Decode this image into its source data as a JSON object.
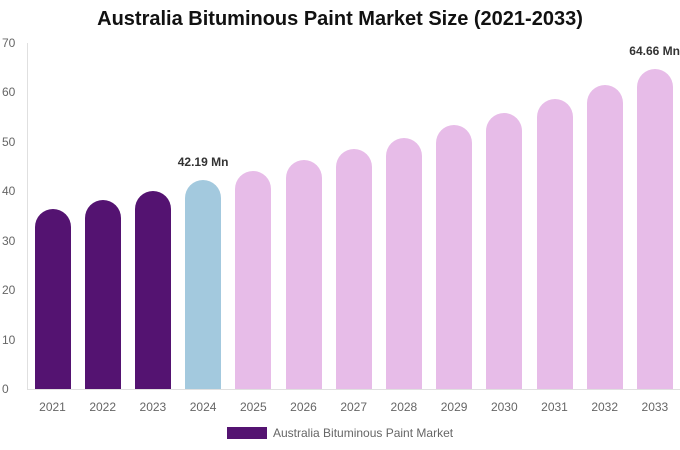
{
  "chart_data": {
    "type": "bar",
    "title": "Australia Bituminous Paint Market Size (2021-2033)",
    "xlabel": "",
    "ylabel": "",
    "ylim": [
      0,
      70
    ],
    "yticks": [
      0,
      10,
      20,
      30,
      40,
      50,
      60,
      70
    ],
    "grid": false,
    "legend_position": "bottom",
    "categories": [
      "2021",
      "2022",
      "2023",
      "2024",
      "2025",
      "2026",
      "2027",
      "2028",
      "2029",
      "2030",
      "2031",
      "2032",
      "2033"
    ],
    "series": [
      {
        "name": "Australia Bituminous Paint Market",
        "values": [
          36.4,
          38.2,
          40.1,
          42.19,
          44.1,
          46.3,
          48.6,
          50.8,
          53.4,
          55.8,
          58.7,
          61.5,
          64.66
        ]
      }
    ],
    "bar_colors": [
      "#541371",
      "#541371",
      "#541371",
      "#a3c9de",
      "#e7bce8",
      "#e7bce8",
      "#e7bce8",
      "#e7bce8",
      "#e7bce8",
      "#e7bce8",
      "#e7bce8",
      "#e7bce8",
      "#e7bce8"
    ],
    "annotations": [
      {
        "category": "2024",
        "text": "42.19 Mn"
      },
      {
        "category": "2033",
        "text": "64.66 Mn"
      }
    ],
    "legend": [
      {
        "label": "Australia Bituminous Paint Market",
        "color": "#541371"
      }
    ]
  }
}
